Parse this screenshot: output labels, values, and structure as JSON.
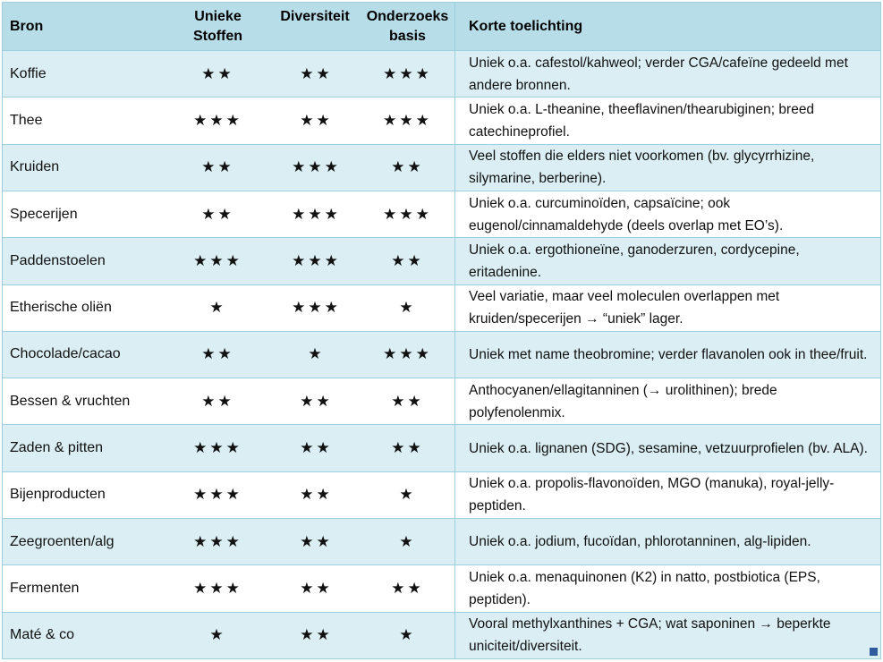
{
  "table": {
    "headers": {
      "bron": "Bron",
      "unieke_line1": "Unieke",
      "unieke_line2": "Stoffen",
      "diversiteit": "Diversiteit",
      "onderzoeks_line1": "Onderzoeks",
      "onderzoeks_line2": "basis",
      "toelichting": "Korte toelichting"
    },
    "star_char": "★",
    "rows": [
      {
        "bron": "Koffie",
        "unieke_stoffen": 2,
        "diversiteit": 2,
        "onderzoeksbasis": 3,
        "toelichting": "Uniek o.a. cafestol/kahweol; verder CGA/cafeïne gedeeld met andere bronnen."
      },
      {
        "bron": "Thee",
        "unieke_stoffen": 3,
        "diversiteit": 2,
        "onderzoeksbasis": 3,
        "toelichting": "Uniek o.a. L-theanine, theeflavinen/thearubiginen; breed catechineprofiel."
      },
      {
        "bron": "Kruiden",
        "unieke_stoffen": 2,
        "diversiteit": 3,
        "onderzoeksbasis": 2,
        "toelichting": "Veel stoffen die elders niet voorkomen (bv. glycyrrhizine, silymarine, berberine)."
      },
      {
        "bron": "Specerijen",
        "unieke_stoffen": 2,
        "diversiteit": 3,
        "onderzoeksbasis": 3,
        "toelichting": "Uniek o.a. curcuminoïden, capsaïcine; ook eugenol/cinnamaldehyde (deels overlap met EO’s)."
      },
      {
        "bron": "Paddenstoelen",
        "unieke_stoffen": 3,
        "diversiteit": 3,
        "onderzoeksbasis": 2,
        "toelichting": "Uniek o.a. ergothioneïne, ganoderzuren, cordycepine, eritadenine."
      },
      {
        "bron": "Etherische oliën",
        "unieke_stoffen": 1,
        "diversiteit": 3,
        "onderzoeksbasis": 1,
        "toelichting": "Veel variatie, maar veel moleculen overlappen met kruiden/specerijen → “uniek” lager."
      },
      {
        "bron": "Chocolade/cacao",
        "unieke_stoffen": 2,
        "diversiteit": 1,
        "onderzoeksbasis": 3,
        "toelichting": "Uniek met name theobromine; verder flavanolen ook in thee/fruit."
      },
      {
        "bron": "Bessen & vruchten",
        "unieke_stoffen": 2,
        "diversiteit": 2,
        "onderzoeksbasis": 2,
        "toelichting": "Anthocyanen/ellagitanninen (→ urolithinen); brede polyfenolenmix."
      },
      {
        "bron": "Zaden & pitten",
        "unieke_stoffen": 3,
        "diversiteit": 2,
        "onderzoeksbasis": 2,
        "toelichting": "Uniek o.a. lignanen (SDG), sesamine, vetzuurprofielen (bv. ALA)."
      },
      {
        "bron": "Bijenproducten",
        "unieke_stoffen": 3,
        "diversiteit": 2,
        "onderzoeksbasis": 1,
        "toelichting": "Uniek o.a. propolis-flavonoïden, MGO (manuka), royal-jelly-peptiden."
      },
      {
        "bron": "Zeegroenten/alg",
        "unieke_stoffen": 3,
        "diversiteit": 2,
        "onderzoeksbasis": 1,
        "toelichting": "Uniek o.a. jodium, fucoïdan, phlorotanninen, alg-lipiden."
      },
      {
        "bron": "Fermenten",
        "unieke_stoffen": 3,
        "diversiteit": 2,
        "onderzoeksbasis": 2,
        "toelichting": "Uniek o.a. menaquinonen (K2) in natto, postbiotica (EPS, peptiden)."
      },
      {
        "bron": "Maté & co",
        "unieke_stoffen": 1,
        "diversiteit": 2,
        "onderzoeksbasis": 1,
        "toelichting": "Vooral methylxanthines + CGA; wat saponinen → beperkte uniciteit/diversiteit."
      }
    ],
    "colors": {
      "header_bg": "#b7dde8",
      "row_alt_bg": "#daeef3",
      "row_bg": "#ffffff",
      "border": "#9ccee0",
      "resize_handle": "#2e5b9e",
      "text": "#111111"
    }
  }
}
